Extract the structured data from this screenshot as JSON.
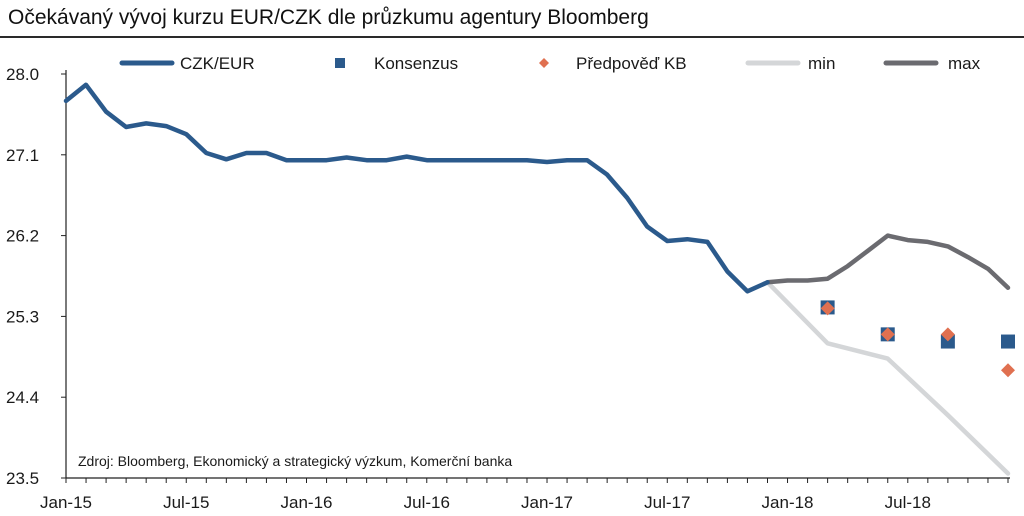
{
  "chart_data": {
    "type": "line",
    "title": "Očekávaný vývoj kurzu EUR/CZK dle průzkumu agentury Bloomberg",
    "source": "Zdroj: Bloomberg, Ekonomický a strategický výzkum, Komerční banka",
    "ylim": [
      23.5,
      28.0
    ],
    "y_ticks": [
      "28.0",
      "27.1",
      "26.2",
      "25.3",
      "24.4",
      "23.5"
    ],
    "y_tick_values": [
      28.0,
      27.1,
      26.2,
      25.3,
      24.4,
      23.5
    ],
    "x_ticks": [
      "Jan-15",
      "Jul-15",
      "Jan-16",
      "Jul-16",
      "Jan-17",
      "Jul-17",
      "Jan-18",
      "Jul-18"
    ],
    "x_tick_months": [
      0,
      6,
      12,
      18,
      24,
      30,
      36,
      42
    ],
    "xlim": [
      0,
      47
    ],
    "legend_position": "top",
    "grid": false,
    "series": [
      {
        "name": "CZK/EUR",
        "style": "line",
        "color": "#2b5a8c",
        "x": [
          0,
          1,
          2,
          3,
          4,
          5,
          6,
          7,
          8,
          9,
          10,
          11,
          12,
          13,
          14,
          15,
          16,
          17,
          18,
          19,
          20,
          21,
          22,
          23,
          24,
          25,
          26,
          27,
          28,
          29,
          30,
          31,
          32,
          33,
          34,
          35
        ],
        "y": [
          27.7,
          27.88,
          27.58,
          27.41,
          27.45,
          27.42,
          27.33,
          27.12,
          27.05,
          27.12,
          27.12,
          27.04,
          27.04,
          27.04,
          27.07,
          27.04,
          27.04,
          27.08,
          27.04,
          27.04,
          27.04,
          27.04,
          27.04,
          27.04,
          27.02,
          27.04,
          27.04,
          26.88,
          26.62,
          26.3,
          26.14,
          26.16,
          26.13,
          25.8,
          25.58,
          25.68
        ]
      },
      {
        "name": "Konsenzus",
        "style": "square",
        "color": "#2b5a8c",
        "x": [
          38,
          41,
          44,
          47
        ],
        "y": [
          25.4,
          25.1,
          25.02,
          25.02
        ]
      },
      {
        "name": "Předpověď KB",
        "style": "diamond",
        "color": "#e07050",
        "x": [
          38,
          41,
          44,
          47
        ],
        "y": [
          25.39,
          25.1,
          25.1,
          24.7
        ]
      },
      {
        "name": "min",
        "style": "line",
        "color": "#d4d6d8",
        "x": [
          35,
          38,
          41,
          44,
          47
        ],
        "y": [
          25.68,
          25.0,
          24.83,
          24.2,
          23.55
        ]
      },
      {
        "name": "max",
        "style": "line",
        "color": "#6b6b70",
        "x": [
          35,
          36,
          37,
          38,
          39,
          40,
          41,
          42,
          43,
          44,
          45,
          46,
          47
        ],
        "y": [
          25.68,
          25.7,
          25.7,
          25.72,
          25.86,
          26.03,
          26.2,
          26.15,
          26.13,
          26.08,
          25.96,
          25.83,
          25.62
        ]
      }
    ]
  }
}
